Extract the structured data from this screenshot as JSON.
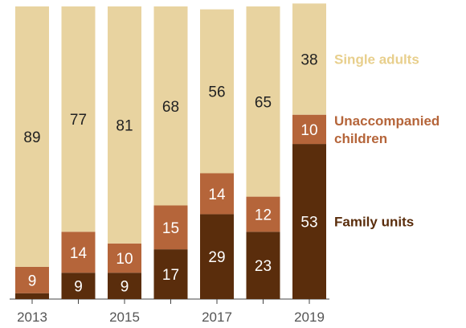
{
  "chart_data": {
    "type": "bar",
    "stacked": true,
    "categories": [
      "2013",
      "2014",
      "2015",
      "2016",
      "2017",
      "2018",
      "2019"
    ],
    "tick_labels": [
      "2013",
      "",
      "2015",
      "",
      "2017",
      "",
      "2019"
    ],
    "series": [
      {
        "name": "Family units",
        "values": [
          2,
          9,
          9,
          17,
          29,
          23,
          53
        ],
        "labels": [
          "",
          "9",
          "9",
          "17",
          "29",
          "23",
          "53"
        ],
        "color": "#5a2d0c",
        "label_color": "#ffffff"
      },
      {
        "name": "Unaccompanied children",
        "values": [
          9,
          14,
          10,
          15,
          14,
          12,
          10
        ],
        "labels": [
          "9",
          "14",
          "10",
          "15",
          "14",
          "12",
          "10"
        ],
        "color": "#b5653a",
        "label_color": "#ffffff"
      },
      {
        "name": "Single adults",
        "values": [
          89,
          77,
          81,
          68,
          56,
          65,
          38
        ],
        "labels": [
          "89",
          "77",
          "81",
          "68",
          "56",
          "65",
          "38"
        ],
        "color": "#e8d3a0",
        "label_color": "#222222"
      }
    ],
    "legend": [
      {
        "lines": [
          "Single adults"
        ],
        "color": "#e8cf8c"
      },
      {
        "lines": [
          "Unaccompanied",
          "children"
        ],
        "color": "#b5653a"
      },
      {
        "lines": [
          "Family units"
        ],
        "color": "#5a2d0c"
      }
    ],
    "ylim": [
      0,
      100
    ],
    "grid": false,
    "title": "",
    "xlabel": "",
    "ylabel": ""
  }
}
